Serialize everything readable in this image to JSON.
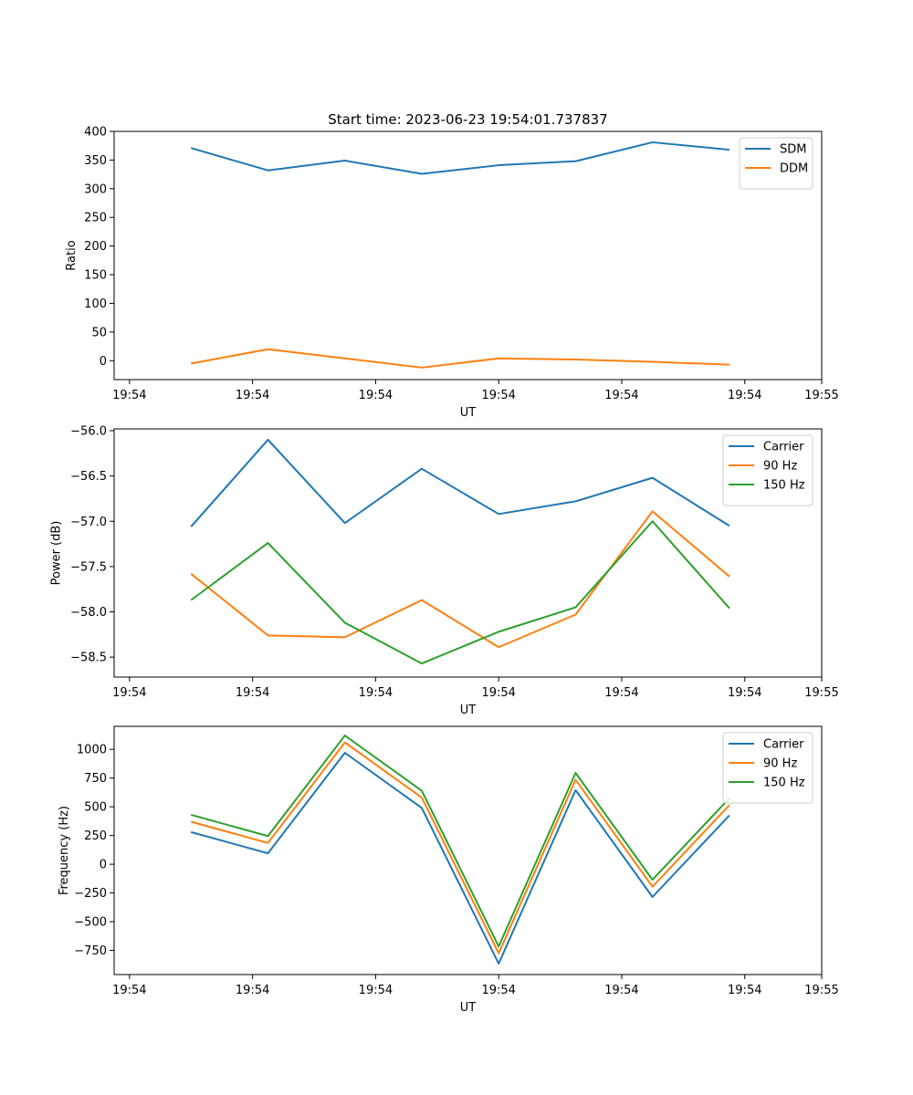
{
  "figure": {
    "title": "Start time: 2023-06-23 19:54:01.737837"
  },
  "chart_data": [
    {
      "type": "line",
      "xlabel": "UT",
      "ylabel": "Ratio",
      "xlim": [
        0.0,
        9.2
      ],
      "ylim": [
        -33,
        400
      ],
      "x": [
        1,
        2,
        3,
        4,
        5,
        6,
        7,
        8
      ],
      "x_tick_values": [
        0.2,
        1.8,
        3.4,
        5.0,
        6.6,
        8.2,
        9.2
      ],
      "x_tick_labels": [
        "19:54",
        "19:54",
        "19:54",
        "19:54",
        "19:54",
        "19:54",
        "19:55"
      ],
      "y_ticks": [
        0,
        50,
        100,
        150,
        200,
        250,
        300,
        350,
        400
      ],
      "y_tick_labels": [
        "0",
        "50",
        "100",
        "150",
        "200",
        "250",
        "300",
        "350",
        "400"
      ],
      "legend_position": "upper-right",
      "series": [
        {
          "name": "SDM",
          "color": "#1f77b4",
          "values": [
            371,
            332,
            349,
            326,
            341,
            348,
            381,
            368
          ]
        },
        {
          "name": "DDM",
          "color": "#ff7f0e",
          "values": [
            -5,
            20,
            4,
            -12,
            4,
            2,
            -2,
            -7
          ]
        }
      ]
    },
    {
      "type": "line",
      "xlabel": "UT",
      "ylabel": "Power (dB)",
      "xlim": [
        0.0,
        9.2
      ],
      "ylim": [
        -58.72,
        -55.98
      ],
      "x": [
        1,
        2,
        3,
        4,
        5,
        6,
        7,
        8
      ],
      "x_tick_values": [
        0.2,
        1.8,
        3.4,
        5.0,
        6.6,
        8.2,
        9.2
      ],
      "x_tick_labels": [
        "19:54",
        "19:54",
        "19:54",
        "19:54",
        "19:54",
        "19:54",
        "19:55"
      ],
      "y_ticks": [
        -56.0,
        -56.5,
        -57.0,
        -57.5,
        -58.0,
        -58.5
      ],
      "y_tick_labels": [
        "−56.0",
        "−56.5",
        "−57.0",
        "−57.5",
        "−58.0",
        "−58.5"
      ],
      "legend_position": "upper-right",
      "series": [
        {
          "name": "Carrier",
          "color": "#1f77b4",
          "values": [
            -57.06,
            -56.1,
            -57.02,
            -56.42,
            -56.92,
            -56.78,
            -56.52,
            -57.05
          ]
        },
        {
          "name": "90 Hz",
          "color": "#ff7f0e",
          "values": [
            -57.58,
            -58.26,
            -58.28,
            -57.87,
            -58.39,
            -58.03,
            -56.89,
            -57.61
          ]
        },
        {
          "name": "150 Hz",
          "color": "#2ca02c",
          "values": [
            -57.87,
            -57.24,
            -58.12,
            -58.57,
            -58.22,
            -57.95,
            -57.0,
            -57.96
          ]
        }
      ]
    },
    {
      "type": "line",
      "xlabel": "UT",
      "ylabel": "Frequency (Hz)",
      "xlim": [
        0.0,
        9.2
      ],
      "ylim": [
        -960,
        1200
      ],
      "x": [
        1,
        2,
        3,
        4,
        5,
        6,
        7,
        8
      ],
      "x_tick_values": [
        0.2,
        1.8,
        3.4,
        5.0,
        6.6,
        8.2,
        9.2
      ],
      "x_tick_labels": [
        "19:54",
        "19:54",
        "19:54",
        "19:54",
        "19:54",
        "19:54",
        "19:55"
      ],
      "y_ticks": [
        1000,
        750,
        500,
        250,
        0,
        -250,
        -500,
        -750
      ],
      "y_tick_labels": [
        "1000",
        "750",
        "500",
        "250",
        "0",
        "−250",
        "−500",
        "−750"
      ],
      "legend_position": "upper-right",
      "series": [
        {
          "name": "Carrier",
          "color": "#1f77b4",
          "values": [
            280,
            95,
            970,
            490,
            -865,
            645,
            -285,
            425
          ]
        },
        {
          "name": "90 Hz",
          "color": "#ff7f0e",
          "values": [
            370,
            185,
            1060,
            580,
            -775,
            735,
            -195,
            515
          ]
        },
        {
          "name": "150 Hz",
          "color": "#2ca02c",
          "values": [
            430,
            245,
            1120,
            640,
            -715,
            795,
            -135,
            575
          ]
        }
      ]
    }
  ]
}
